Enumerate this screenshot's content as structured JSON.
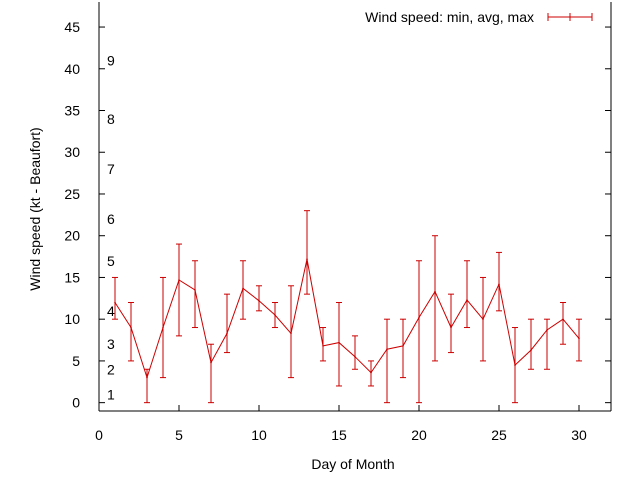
{
  "chart_data": {
    "type": "line",
    "xlabel": "Day of Month",
    "ylabel": "Wind speed (kt - Beaufort)",
    "xlim": [
      0,
      32
    ],
    "ylim": [
      -1,
      48
    ],
    "xticks": [
      0,
      5,
      10,
      15,
      20,
      25,
      30
    ],
    "yticks": [
      0,
      5,
      10,
      15,
      20,
      25,
      30,
      35,
      40,
      45
    ],
    "beaufort_labels": [
      {
        "label": "1",
        "y": 1
      },
      {
        "label": "2",
        "y": 4
      },
      {
        "label": "3",
        "y": 7
      },
      {
        "label": "4",
        "y": 11
      },
      {
        "label": "5",
        "y": 17
      },
      {
        "label": "6",
        "y": 22
      },
      {
        "label": "7",
        "y": 28
      },
      {
        "label": "8",
        "y": 34
      },
      {
        "label": "9",
        "y": 41
      }
    ],
    "legend": {
      "placement": "top-right"
    },
    "series": [
      {
        "name": "Wind speed: min, avg, max",
        "color": "#cc0000",
        "x": [
          1,
          2,
          3,
          4,
          5,
          6,
          7,
          8,
          9,
          10,
          11,
          12,
          13,
          14,
          15,
          16,
          17,
          18,
          19,
          20,
          21,
          22,
          23,
          24,
          25,
          26,
          27,
          28,
          29,
          30
        ],
        "avg": [
          12,
          9,
          3,
          9,
          14.7,
          13.5,
          4.8,
          8.3,
          13.7,
          12.2,
          10.5,
          8.3,
          17.2,
          6.8,
          7.2,
          5.5,
          3.6,
          6.4,
          6.8,
          10.2,
          13.3,
          9,
          12.3,
          10,
          14.2,
          4.5,
          6.3,
          8.7,
          10,
          7.7
        ],
        "min": [
          10,
          5,
          0,
          3,
          8,
          9,
          0,
          6,
          10,
          11,
          9,
          3,
          13,
          5,
          2,
          4,
          2,
          0,
          3,
          0,
          5,
          6,
          9,
          5,
          11,
          0,
          4,
          4,
          7,
          5
        ],
        "max": [
          15,
          12,
          4,
          15,
          19,
          17,
          7,
          13,
          17,
          14,
          12,
          14,
          23,
          9,
          12,
          8,
          5,
          10,
          10,
          17,
          20,
          13,
          17,
          15,
          18,
          9,
          10,
          10,
          12,
          10
        ]
      }
    ]
  }
}
